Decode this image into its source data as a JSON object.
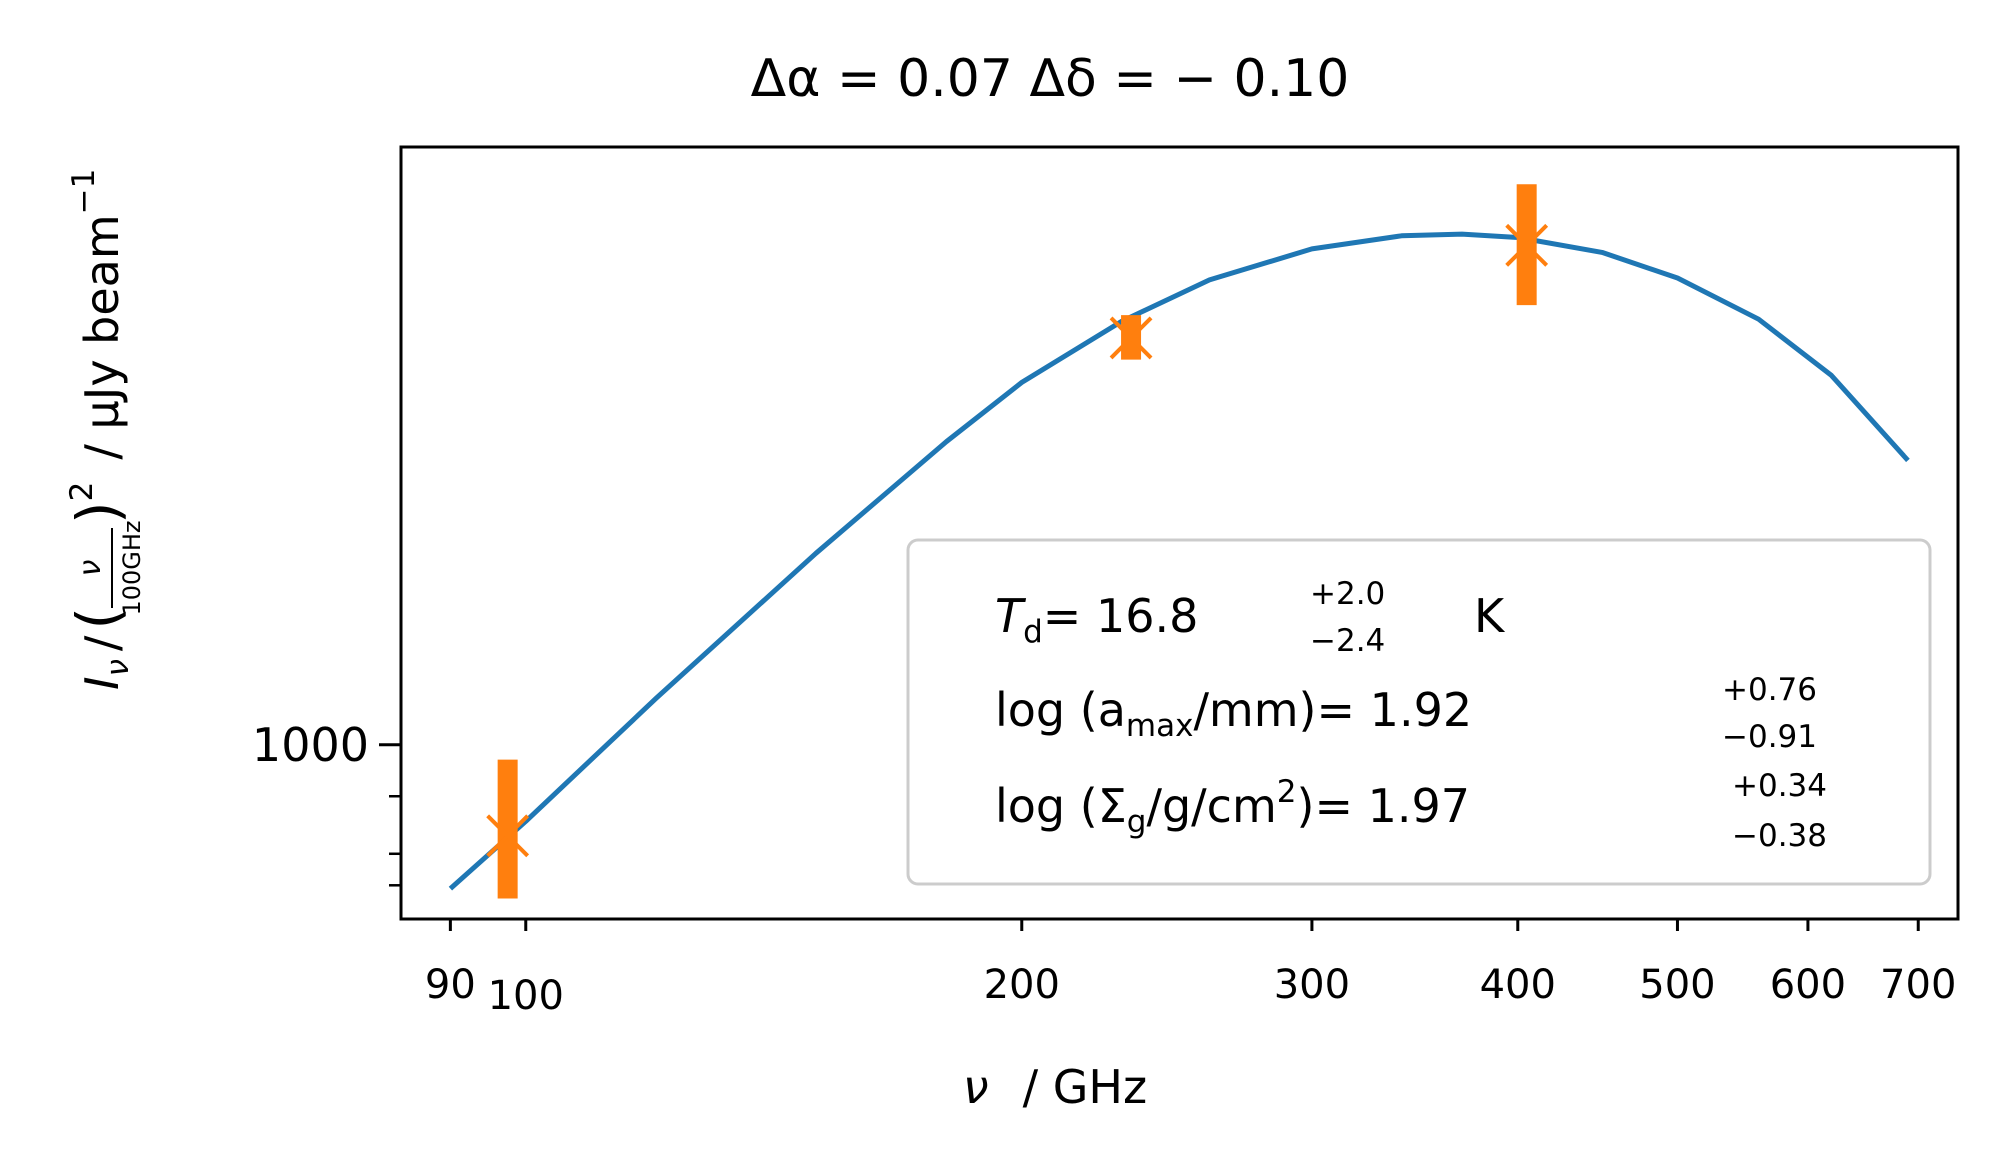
{
  "chart_data": {
    "type": "scatter",
    "title": "Δα = 0.07   Δδ = − 0.10",
    "x_scale": "log",
    "y_scale": "log",
    "xlim": [
      84,
      740
    ],
    "ylim": [
      700,
      3400
    ],
    "xlabel": {
      "symbol": "ν",
      "unit": "/ GHz"
    },
    "ylabel": {
      "lhs": "I",
      "lhs_sub": "ν",
      "slash": "/",
      "frac_num": "ν",
      "frac_den": "100GHz",
      "power": "2",
      "unit": "/ μJy beam",
      "unit_power": "−1"
    },
    "x_ticks": [
      {
        "value": 90,
        "label": "90"
      },
      {
        "value": 100,
        "label": "100"
      },
      {
        "value": 200,
        "label": "200"
      },
      {
        "value": 300,
        "label": "300"
      },
      {
        "value": 400,
        "label": "400"
      },
      {
        "value": 500,
        "label": "500"
      },
      {
        "value": 600,
        "label": "600"
      },
      {
        "value": 700,
        "label": "700"
      }
    ],
    "y_ticks_major": [
      {
        "value": 1000,
        "label": "1000"
      }
    ],
    "y_ticks_minor": [
      900,
      800,
      750
    ],
    "series": [
      {
        "kind": "line",
        "color": "#1f77b4",
        "x": [
          90,
          100,
          120,
          150,
          180,
          200,
          230,
          260,
          300,
          340,
          370,
          400,
          450,
          500,
          560,
          620,
          690
        ],
        "y": [
          745,
          855,
          1100,
          1480,
          1860,
          2100,
          2380,
          2590,
          2760,
          2835,
          2845,
          2825,
          2740,
          2600,
          2390,
          2130,
          1790
        ]
      },
      {
        "kind": "errorbar",
        "color": "#ff7f0e",
        "marker": "x",
        "x": [
          97.5,
          233,
          405
        ],
        "y": [
          830,
          2300,
          2780
        ],
        "yerr_low": [
          100,
          100,
          320
        ],
        "yerr_high": [
          140,
          110,
          370
        ]
      }
    ],
    "legend": {
      "position": "lower-right",
      "lines": [
        {
          "prefix": "T",
          "prefix_sub": "d",
          "eq": "= 16.8",
          "sup": "+2.0",
          "sub": "−2.4",
          "unit": "K"
        },
        {
          "prefix": "log (a",
          "prefix_sub": "max",
          "tail": "/mm)",
          "eq": "= 1.92",
          "sup": "+0.76",
          "sub": "−0.91"
        },
        {
          "prefix": "log (Σ",
          "prefix_sub": "g",
          "tail": "/g/cm",
          "tail_sup": "2",
          "close": ")",
          "eq": "= 1.97",
          "sup": "+0.34",
          "sub": "−0.38"
        }
      ]
    }
  }
}
